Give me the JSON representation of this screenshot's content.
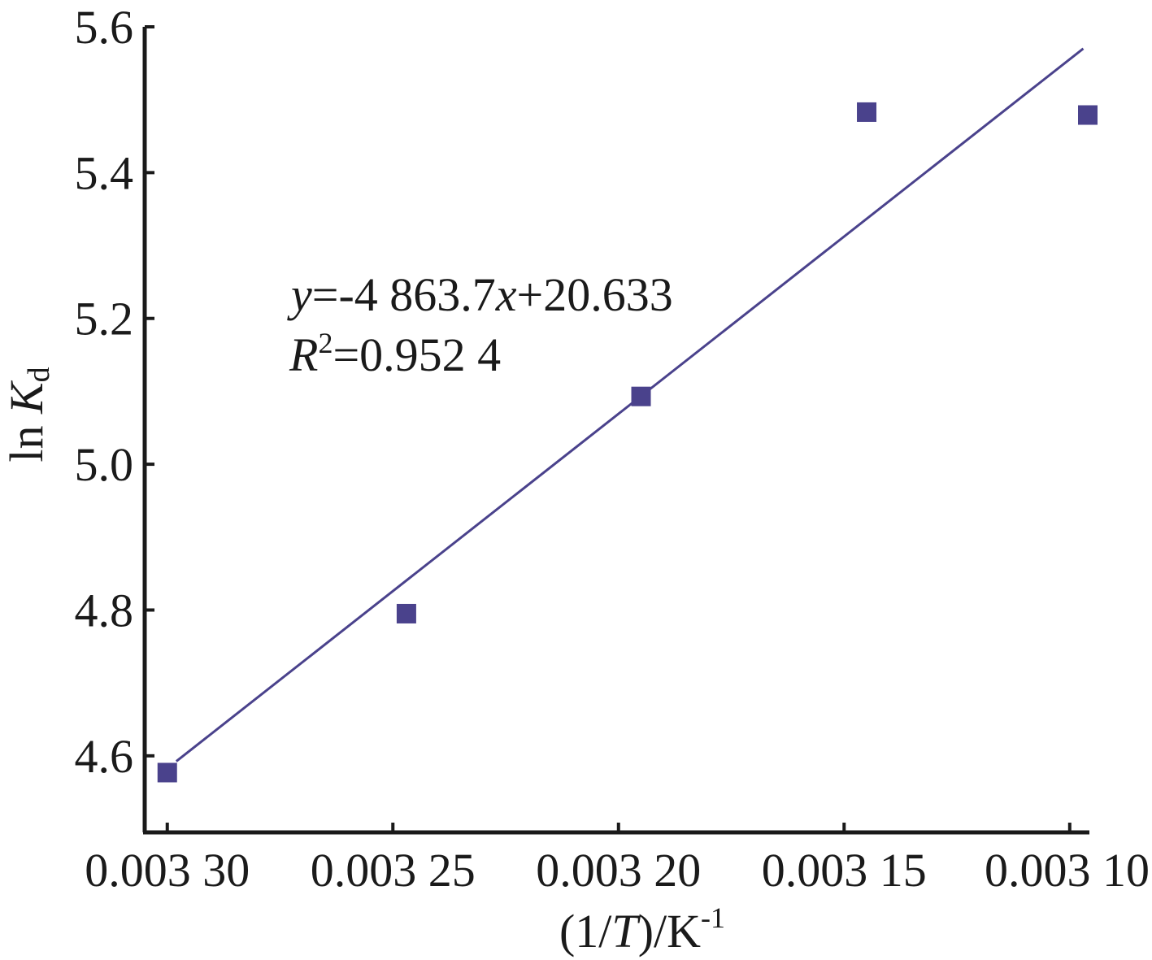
{
  "chart_data": {
    "type": "scatter",
    "title": "",
    "xlabel": {
      "pre": "(1/",
      "var": "T",
      "post": ")/K",
      "sup": "-1"
    },
    "ylabel": {
      "pre": "ln ",
      "var": "K",
      "sub": "d"
    },
    "x_reversed": true,
    "xlim": [
      0.003305,
      0.003096
    ],
    "ylim": [
      4.495,
      5.6
    ],
    "xticks": [
      0.0033,
      0.00325,
      0.0032,
      0.00315,
      0.0031
    ],
    "xtick_labels": [
      "0.003 30",
      "0.003 25",
      "0.003 20",
      "0.003 15",
      "0.003 10"
    ],
    "yticks": [
      4.6,
      4.8,
      5.0,
      5.2,
      5.4,
      5.6
    ],
    "ytick_labels": [
      "4.6",
      "4.8",
      "5.0",
      "5.2",
      "5.4",
      "5.6"
    ],
    "grid": false,
    "legend": "none",
    "marker_color": "#4a428c",
    "line_color": "#4a428c",
    "series": [
      {
        "x": [
          0.0033,
          0.003247,
          0.003195,
          0.003145,
          0.003096
        ],
        "y": [
          4.577,
          4.795,
          5.093,
          5.483,
          5.479
        ]
      }
    ],
    "trendline": {
      "slope": -4863.7,
      "intercept": 20.633,
      "x_range": [
        0.003298,
        0.003097
      ]
    },
    "annotation": {
      "eq": {
        "y": "y",
        "mid": "=-4 863.7",
        "x": "x",
        "tail": "+20.633"
      },
      "r2": {
        "R": "R",
        "sup": "2",
        "tail": "=0.952 4"
      }
    }
  }
}
